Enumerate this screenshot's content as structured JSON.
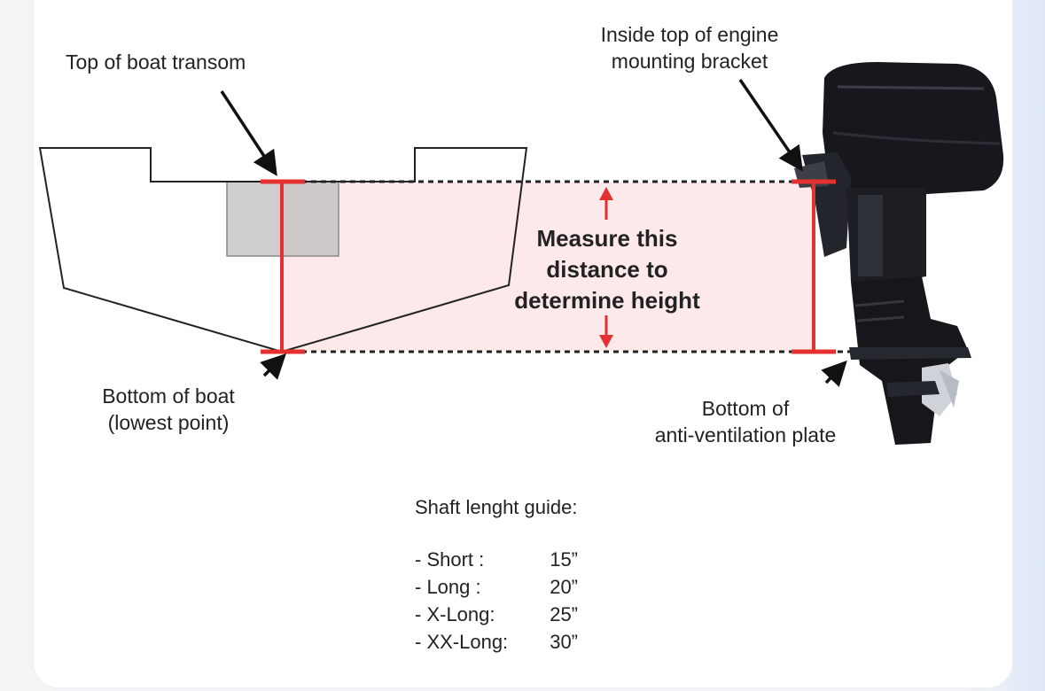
{
  "labels": {
    "top_transom": "Top of boat transom",
    "bracket_line1": "Inside top of engine",
    "bracket_line2": "mounting bracket",
    "bottom_boat_line1": "Bottom of boat",
    "bottom_boat_line2": "(lowest point)",
    "plate_line1": "Bottom of",
    "plate_line2": "anti-ventilation plate"
  },
  "measure": {
    "line1": "Measure this",
    "line2": "distance to",
    "line3": "determine height"
  },
  "guide": {
    "title": "Shaft lenght guide:",
    "rows": [
      {
        "name": "- Short :",
        "value": "15”"
      },
      {
        "name": "- Long :",
        "value": "20”"
      },
      {
        "name": "- X-Long:",
        "value": "25”"
      },
      {
        "name": "- XX-Long:",
        "value": "30”"
      }
    ]
  },
  "colors": {
    "measure_red": "#e53030",
    "band_fill": "#fde9ea",
    "engine_dark": "#16181d"
  }
}
